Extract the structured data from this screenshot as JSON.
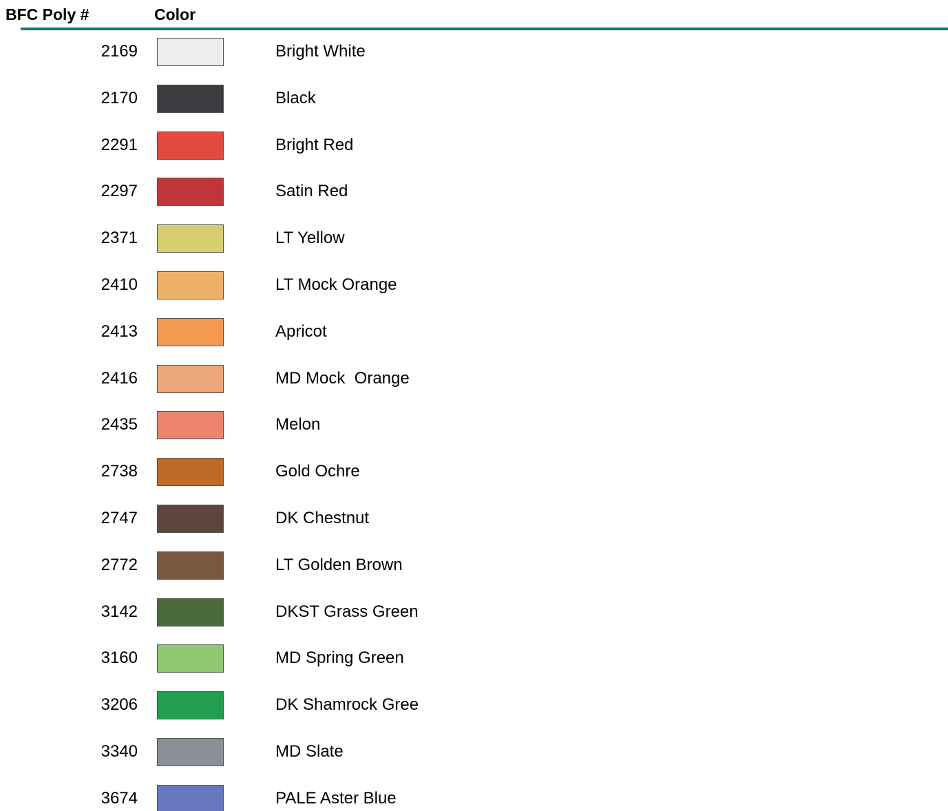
{
  "header": {
    "number": "BFC Poly #",
    "color": "Color"
  },
  "rows": [
    {
      "number": 2169,
      "color": "#eeeeee",
      "name": "Bright White"
    },
    {
      "number": 2170,
      "color": "#3a3c40",
      "name": "Black"
    },
    {
      "number": 2291,
      "color": "#e04a40",
      "name": "Bright Red"
    },
    {
      "number": 2297,
      "color": "#c0363a",
      "name": "Satin Red"
    },
    {
      "number": 2371,
      "color": "#d6cf70",
      "name": "LT Yellow"
    },
    {
      "number": 2410,
      "color": "#eeb068",
      "name": "LT Mock Orange"
    },
    {
      "number": 2413,
      "color": "#f49a50",
      "name": "Apricot"
    },
    {
      "number": 2416,
      "color": "#eca878",
      "name": "MD Mock  Orange"
    },
    {
      "number": 2435,
      "color": "#ec8470",
      "name": "Melon"
    },
    {
      "number": 2738,
      "color": "#c06a28",
      "name": "Gold Ochre"
    },
    {
      "number": 2747,
      "color": "#5e463c",
      "name": "DK Chestnut"
    },
    {
      "number": 2772,
      "color": "#7a5840",
      "name": "LT Golden Brown"
    },
    {
      "number": 3142,
      "color": "#4a6a3a",
      "name": "DKST Grass Green"
    },
    {
      "number": 3160,
      "color": "#90c870",
      "name": "MD Spring Green"
    },
    {
      "number": 3206,
      "color": "#22a050",
      "name": "DK Shamrock Gree"
    },
    {
      "number": 3340,
      "color": "#8a8e96",
      "name": "MD Slate"
    },
    {
      "number": 3674,
      "color": "#6878c0",
      "name": "PALE Aster Blue"
    }
  ]
}
